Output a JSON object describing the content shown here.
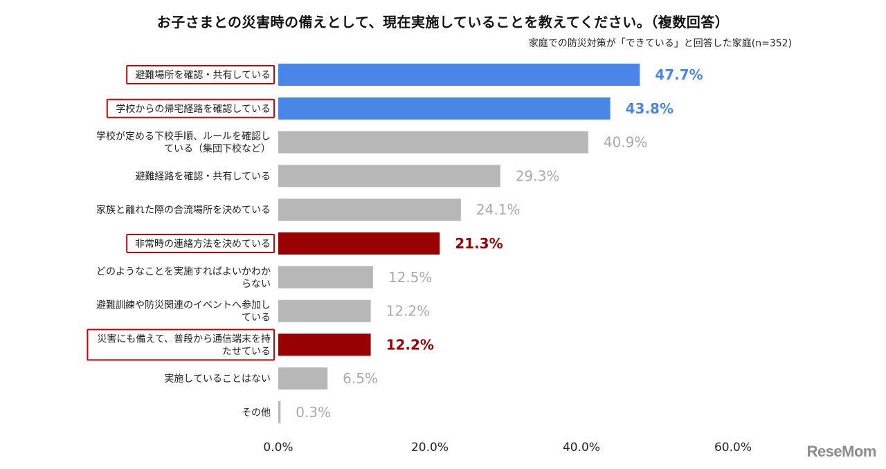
{
  "chart_data": {
    "type": "bar",
    "orientation": "horizontal",
    "title": "お子さまとの災害時の備えとして、現在実施していることを教えてください。（複数回答）",
    "subtitle": "家庭での防災対策が「できている」と回答した家庭(n=352)",
    "categories": [
      [
        "避難場所を確認・共有している"
      ],
      [
        "学校からの帰宅経路を確認している"
      ],
      [
        "学校が定める下校手順、ルールを確認し",
        "ている（集団下校など）"
      ],
      [
        "避難経路を確認・共有している"
      ],
      [
        "家族と離れた際の合流場所を決めている"
      ],
      [
        "非常時の連絡方法を決めている"
      ],
      [
        "どのようなことを実施すればよいかわか",
        "らない"
      ],
      [
        "避難訓練や防災関連のイベントへ参加し",
        "ている"
      ],
      [
        "災害にも備えて、普段から通信端末を持",
        "たせている"
      ],
      [
        "実施していることはない"
      ],
      [
        "その他"
      ]
    ],
    "values": [
      47.7,
      43.8,
      40.9,
      29.3,
      24.1,
      21.3,
      12.5,
      12.2,
      12.2,
      6.5,
      0.3
    ],
    "value_labels": [
      "47.7%",
      "43.8%",
      "40.9%",
      "29.3%",
      "24.1%",
      "21.3%",
      "12.5%",
      "12.2%",
      "12.2%",
      "6.5%",
      "0.3%"
    ],
    "bar_colors": [
      "#4a86e8",
      "#4a86e8",
      "#b7b7b7",
      "#b7b7b7",
      "#b7b7b7",
      "#990000",
      "#b7b7b7",
      "#b7b7b7",
      "#990000",
      "#b7b7b7",
      "#b7b7b7"
    ],
    "label_colors": [
      "#4a86e8",
      "#4a86e8",
      "#aaaaaa",
      "#aaaaaa",
      "#aaaaaa",
      "#990000",
      "#aaaaaa",
      "#aaaaaa",
      "#990000",
      "#aaaaaa",
      "#aaaaaa"
    ],
    "bold_labels": [
      true,
      true,
      false,
      false,
      false,
      true,
      false,
      false,
      true,
      false,
      false
    ],
    "highlighted": [
      true,
      true,
      false,
      false,
      false,
      true,
      false,
      false,
      true,
      false,
      false
    ],
    "highlight_box_color": "#cc0000",
    "xlim": [
      0,
      60
    ],
    "xticks": [
      "0.0%",
      "20.0%",
      "40.0%",
      "60.0%"
    ],
    "grid": false
  },
  "logo_text": "ReseMom"
}
